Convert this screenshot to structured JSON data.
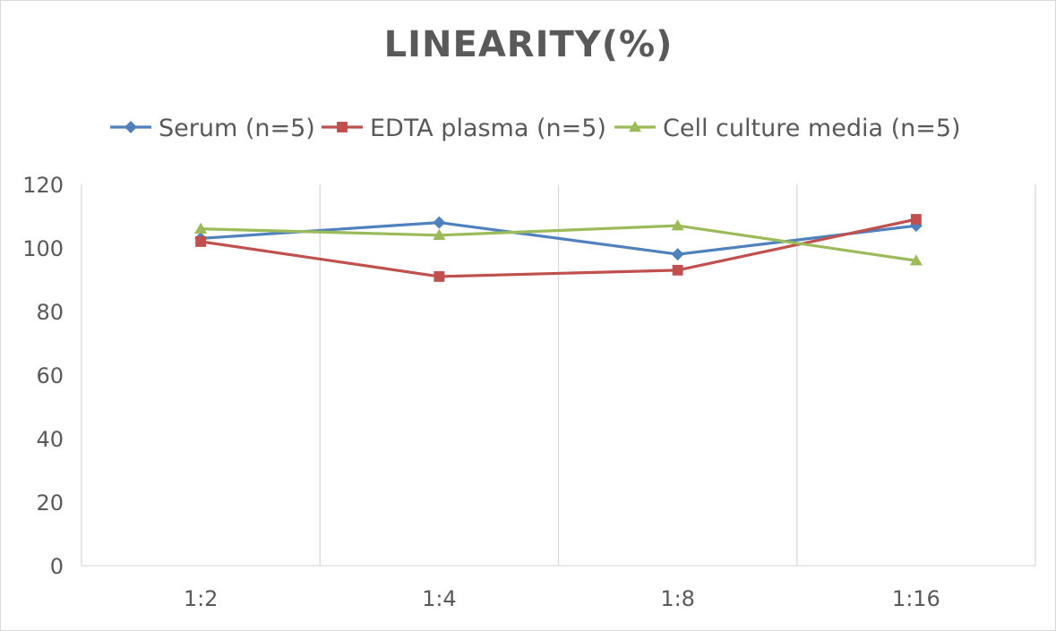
{
  "chart_data": {
    "type": "line",
    "title": "LINEARITY(%)",
    "xlabel": "",
    "ylabel": "",
    "categories": [
      "1:2",
      "1:4",
      "1:8",
      "1:16"
    ],
    "ylim": [
      0,
      120
    ],
    "yticks": [
      0,
      20,
      40,
      60,
      80,
      100,
      120
    ],
    "grid": "vertical",
    "legend_position": "top",
    "series": [
      {
        "name": "Serum (n=5)",
        "values": [
          103,
          108,
          98,
          107
        ],
        "color": "#4f81bd",
        "marker": "diamond"
      },
      {
        "name": "EDTA plasma (n=5)",
        "values": [
          102,
          91,
          93,
          109
        ],
        "color": "#c0504d",
        "marker": "square"
      },
      {
        "name": "Cell culture media (n=5)",
        "values": [
          106,
          104,
          107,
          96
        ],
        "color": "#9bbb59",
        "marker": "triangle"
      }
    ]
  }
}
